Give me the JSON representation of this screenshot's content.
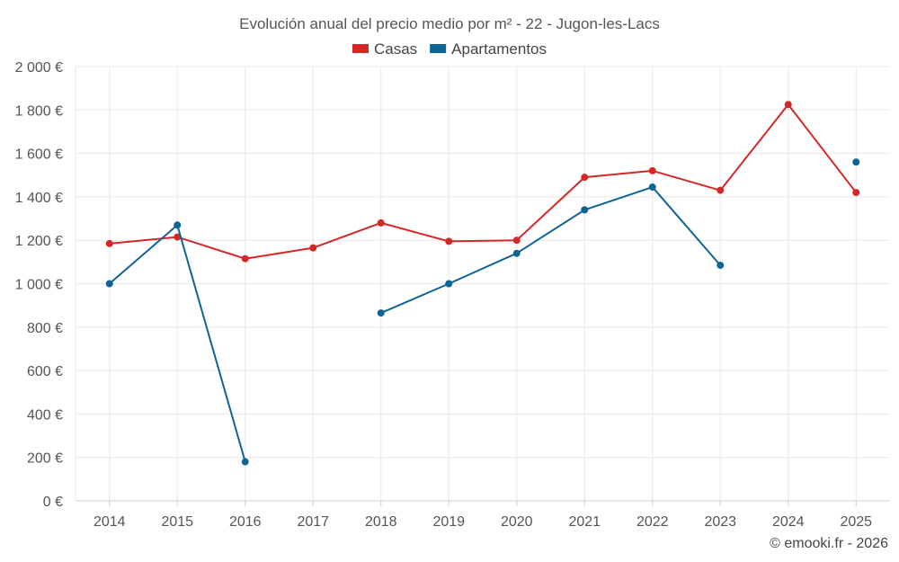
{
  "chart_data": {
    "type": "line",
    "title": "Evolución anual del precio medio por m² - 22 - Jugon-les-Lacs",
    "x": [
      "2014",
      "2015",
      "2016",
      "2017",
      "2018",
      "2019",
      "2020",
      "2021",
      "2022",
      "2023",
      "2024",
      "2025"
    ],
    "ylim": [
      0,
      2000
    ],
    "y_ticks": [
      0,
      200,
      400,
      600,
      800,
      1000,
      1200,
      1400,
      1600,
      1800,
      2000
    ],
    "y_tick_labels": [
      "0 €",
      "200 €",
      "400 €",
      "600 €",
      "800 €",
      "1 000 €",
      "1 200 €",
      "1 400 €",
      "1 600 €",
      "1 800 €",
      "2 000 €"
    ],
    "grid": true,
    "legend_position": "top-center",
    "series": [
      {
        "name": "Casas",
        "color": "#d62728",
        "values": [
          1185,
          1215,
          1115,
          1165,
          1280,
          1195,
          1200,
          1490,
          1520,
          1430,
          1825,
          1420
        ]
      },
      {
        "name": "Apartamentos",
        "color": "#0f6496",
        "values": [
          1000,
          1270,
          180,
          null,
          865,
          1000,
          1140,
          1340,
          1445,
          1085,
          null,
          1560
        ]
      }
    ]
  },
  "credit": "© emooki.fr - 2026"
}
